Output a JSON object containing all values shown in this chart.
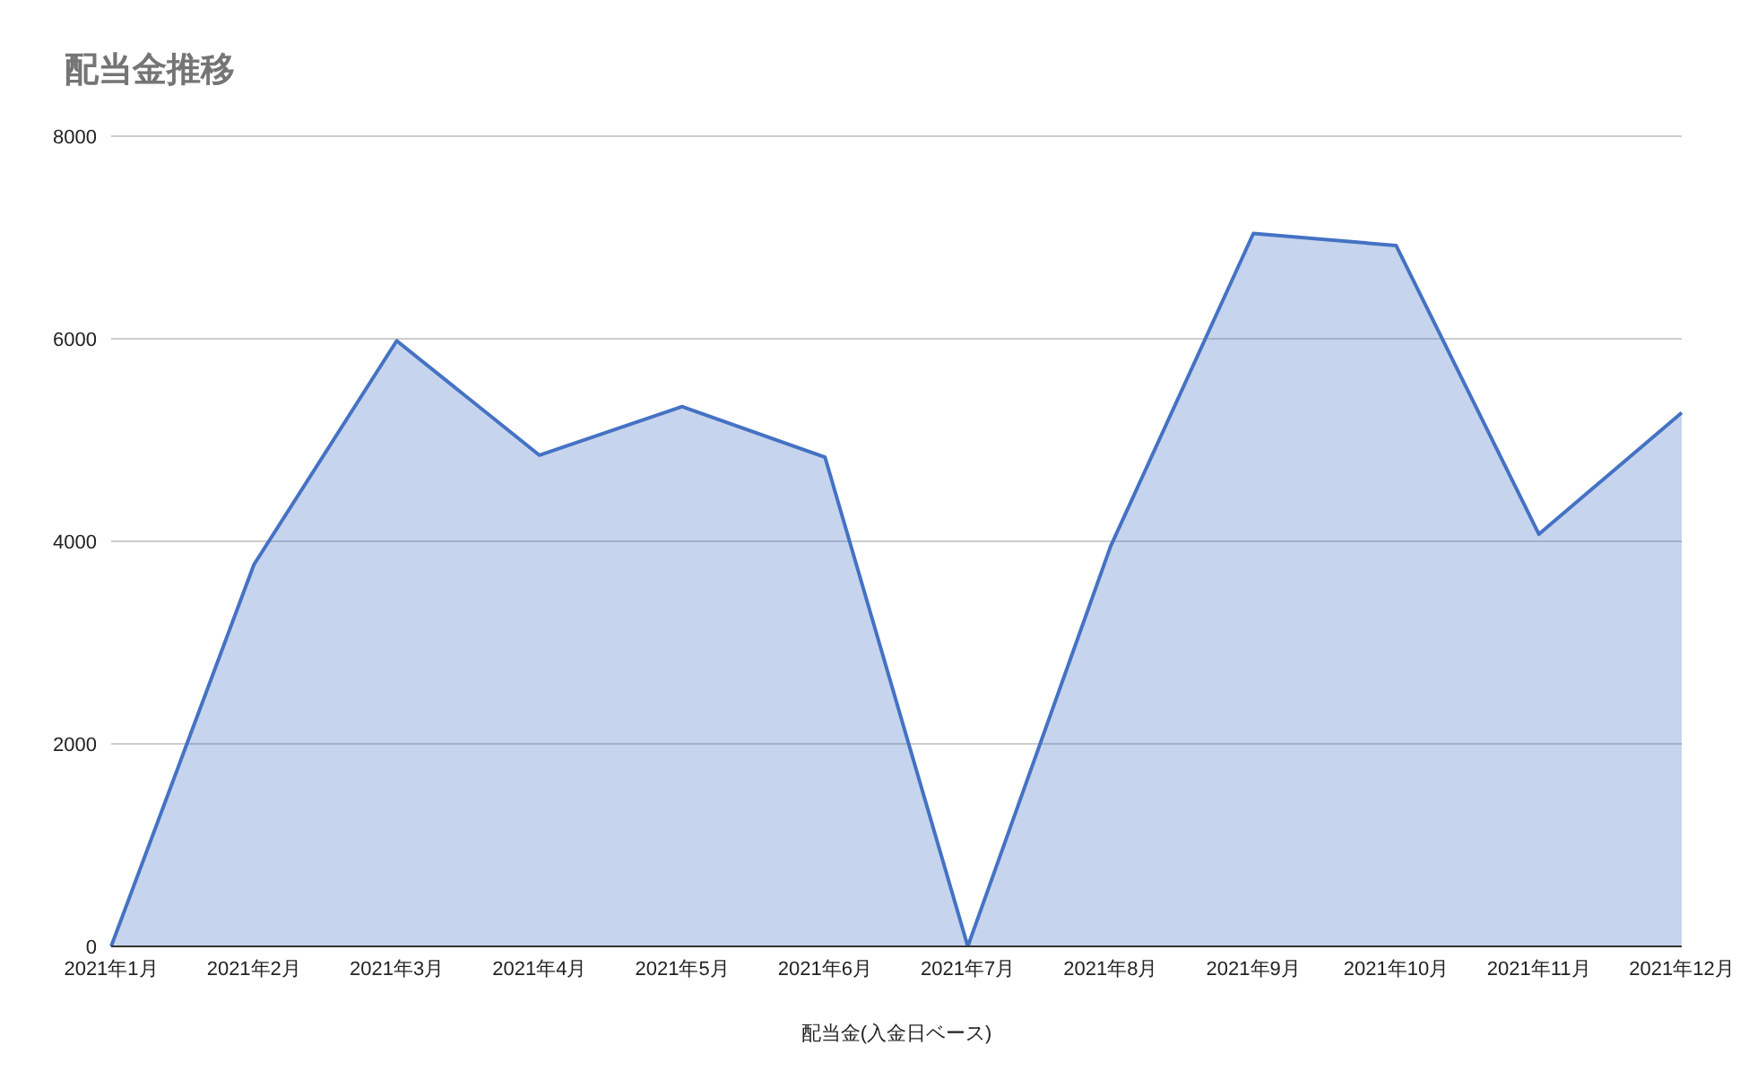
{
  "chart_data": {
    "type": "area",
    "title": "配当金推移",
    "xlabel": "配当金(入金日ベース)",
    "categories": [
      "2021年1月",
      "2021年2月",
      "2021年3月",
      "2021年4月",
      "2021年5月",
      "2021年6月",
      "2021年7月",
      "2021年8月",
      "2021年9月",
      "2021年10月",
      "2021年11月",
      "2021年12月"
    ],
    "series": [
      {
        "color": "#4472c4",
        "values": [
          0,
          3770,
          5980,
          4850,
          5330,
          4830,
          0,
          3950,
          7040,
          6920,
          4070,
          5270
        ]
      }
    ],
    "ylim": [
      0,
      8000
    ],
    "yticks": [
      0,
      2000,
      4000,
      6000,
      8000
    ],
    "grid": "y"
  }
}
